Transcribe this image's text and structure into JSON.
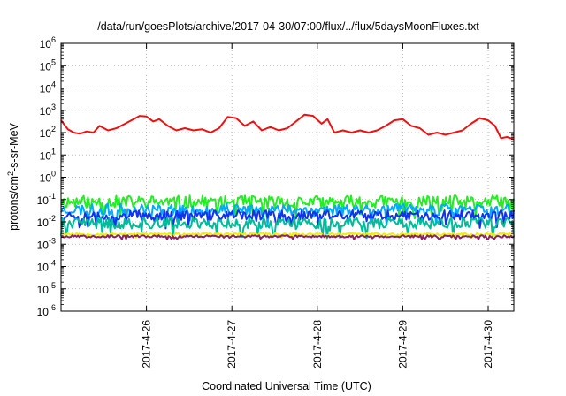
{
  "chart_data": {
    "type": "line",
    "title": "/data/run/goesPlots/archive/2017-04-30/07:00/flux/../flux/5daysMoonFluxes.txt",
    "xlabel": "Coordinated Universal Time (UTC)",
    "ylabel_base": "protons/cm",
    "ylabel_sup": "2",
    "ylabel_rest": "-s-sr-MeV",
    "y_scale": "log",
    "ylim_exp": [
      -6,
      6
    ],
    "y_ticks": [
      {
        "exp": -6,
        "base": "10",
        "sup": "-6"
      },
      {
        "exp": -5,
        "base": "10",
        "sup": "-5"
      },
      {
        "exp": -4,
        "base": "10",
        "sup": "-4"
      },
      {
        "exp": -3,
        "base": "10",
        "sup": "-3"
      },
      {
        "exp": -2,
        "base": "10",
        "sup": "-2"
      },
      {
        "exp": -1,
        "base": "10",
        "sup": "-1"
      },
      {
        "exp": 0,
        "base": "10",
        "sup": "0"
      },
      {
        "exp": 1,
        "base": "10",
        "sup": "1"
      },
      {
        "exp": 2,
        "base": "10",
        "sup": "2"
      },
      {
        "exp": 3,
        "base": "10",
        "sup": "3"
      },
      {
        "exp": 4,
        "base": "10",
        "sup": "4"
      },
      {
        "exp": 5,
        "base": "10",
        "sup": "5"
      },
      {
        "exp": 6,
        "base": "10",
        "sup": "6"
      }
    ],
    "xlim_days": [
      0,
      5.3
    ],
    "x_ticks": [
      {
        "day": 1,
        "label": "2017-4-26"
      },
      {
        "day": 2,
        "label": "2017-4-27"
      },
      {
        "day": 3,
        "label": "2017-4-28"
      },
      {
        "day": 4,
        "label": "2017-4-29"
      },
      {
        "day": 5,
        "label": "2017-4-30"
      }
    ],
    "grid": true,
    "series": [
      {
        "color": "#22ee22",
        "base_log": -1.1,
        "jitter": 0.28,
        "seed": 11
      },
      {
        "color": "#00aaff",
        "base_log": -1.45,
        "jitter": 0.25,
        "seed": 23
      },
      {
        "color": "#1133ee",
        "base_log": -1.7,
        "jitter": 0.22,
        "seed": 37
      },
      {
        "color": "#00bb99",
        "base_log": -2.05,
        "jitter": 0.25,
        "seed": 41
      },
      {
        "color": "#eeee00",
        "base_log": -2.55,
        "jitter": 0.06,
        "seed": 53
      },
      {
        "color": "#882266",
        "base_log": -2.65,
        "jitter": 0.05,
        "seed": 67
      },
      {
        "color": "#ee1111",
        "points": [
          [
            0.0,
            2.55
          ],
          [
            0.08,
            2.15
          ],
          [
            0.15,
            2.0
          ],
          [
            0.22,
            1.95
          ],
          [
            0.3,
            2.05
          ],
          [
            0.38,
            2.0
          ],
          [
            0.45,
            2.3
          ],
          [
            0.55,
            2.1
          ],
          [
            0.65,
            2.2
          ],
          [
            0.75,
            2.4
          ],
          [
            0.85,
            2.6
          ],
          [
            0.92,
            2.75
          ],
          [
            1.0,
            2.72
          ],
          [
            1.08,
            2.5
          ],
          [
            1.15,
            2.6
          ],
          [
            1.25,
            2.3
          ],
          [
            1.35,
            2.1
          ],
          [
            1.45,
            2.2
          ],
          [
            1.55,
            2.1
          ],
          [
            1.65,
            2.15
          ],
          [
            1.75,
            2.0
          ],
          [
            1.85,
            2.2
          ],
          [
            1.95,
            2.7
          ],
          [
            2.05,
            2.65
          ],
          [
            2.15,
            2.3
          ],
          [
            2.25,
            2.5
          ],
          [
            2.35,
            2.1
          ],
          [
            2.45,
            2.25
          ],
          [
            2.55,
            2.1
          ],
          [
            2.65,
            2.2
          ],
          [
            2.75,
            2.5
          ],
          [
            2.85,
            2.8
          ],
          [
            2.95,
            2.75
          ],
          [
            3.05,
            2.4
          ],
          [
            3.12,
            2.6
          ],
          [
            3.2,
            2.0
          ],
          [
            3.3,
            2.1
          ],
          [
            3.4,
            2.0
          ],
          [
            3.5,
            2.1
          ],
          [
            3.6,
            2.0
          ],
          [
            3.7,
            2.1
          ],
          [
            3.8,
            2.3
          ],
          [
            3.9,
            2.55
          ],
          [
            4.0,
            2.6
          ],
          [
            4.1,
            2.3
          ],
          [
            4.2,
            2.2
          ],
          [
            4.3,
            1.9
          ],
          [
            4.4,
            2.0
          ],
          [
            4.5,
            1.9
          ],
          [
            4.6,
            2.0
          ],
          [
            4.7,
            2.1
          ],
          [
            4.8,
            2.4
          ],
          [
            4.9,
            2.65
          ],
          [
            5.0,
            2.55
          ],
          [
            5.08,
            2.3
          ],
          [
            5.15,
            1.75
          ],
          [
            5.22,
            1.8
          ],
          [
            5.3,
            1.7
          ]
        ]
      }
    ]
  }
}
